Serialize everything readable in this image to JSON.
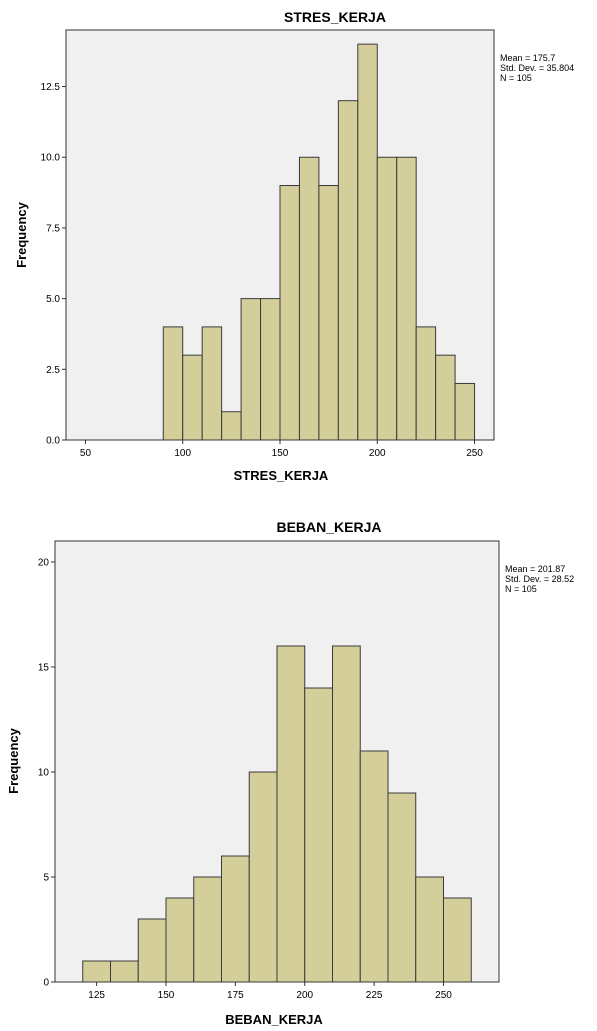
{
  "chart_data": [
    {
      "type": "bar",
      "title": "STRES_KERJA",
      "xlabel": "STRES_KERJA",
      "ylabel": "Frequency",
      "xlim": [
        40,
        260
      ],
      "ylim": [
        0,
        14.5
      ],
      "xticks": [
        50,
        100,
        150,
        200,
        250
      ],
      "xtick_labels": [
        "50",
        "100",
        "150",
        "200",
        "250"
      ],
      "yticks": [
        0,
        2.5,
        5,
        7.5,
        10,
        12.5
      ],
      "ytick_labels": [
        "0.0",
        "2.5",
        "5.0",
        "7.5",
        "10.0",
        "12.5"
      ],
      "bin_width": 10,
      "bins": [
        {
          "start": 90,
          "end": 100,
          "value": 4
        },
        {
          "start": 100,
          "end": 110,
          "value": 3
        },
        {
          "start": 110,
          "end": 120,
          "value": 4
        },
        {
          "start": 120,
          "end": 130,
          "value": 1
        },
        {
          "start": 130,
          "end": 140,
          "value": 5
        },
        {
          "start": 140,
          "end": 150,
          "value": 5
        },
        {
          "start": 150,
          "end": 160,
          "value": 9
        },
        {
          "start": 160,
          "end": 170,
          "value": 10
        },
        {
          "start": 170,
          "end": 180,
          "value": 9
        },
        {
          "start": 180,
          "end": 190,
          "value": 12
        },
        {
          "start": 190,
          "end": 200,
          "value": 14
        },
        {
          "start": 200,
          "end": 210,
          "value": 10
        },
        {
          "start": 210,
          "end": 220,
          "value": 10
        },
        {
          "start": 220,
          "end": 230,
          "value": 4
        },
        {
          "start": 230,
          "end": 240,
          "value": 3
        },
        {
          "start": 240,
          "end": 250,
          "value": 2
        }
      ],
      "stats": [
        "Mean = 175.7",
        "Std. Dev. = 35.804",
        "N = 105"
      ],
      "grid": false,
      "legend": "none"
    },
    {
      "type": "bar",
      "title": "BEBAN_KERJA",
      "xlabel": "BEBAN_KERJA",
      "ylabel": "Frequency",
      "xlim": [
        110,
        270
      ],
      "ylim": [
        0,
        21
      ],
      "xticks": [
        125,
        150,
        175,
        200,
        225,
        250
      ],
      "xtick_labels": [
        "125",
        "150",
        "175",
        "200",
        "225",
        "250"
      ],
      "yticks": [
        0,
        5,
        10,
        15,
        20
      ],
      "ytick_labels": [
        "0",
        "5",
        "10",
        "15",
        "20"
      ],
      "bin_width": 10,
      "bins": [
        {
          "start": 120,
          "end": 130,
          "value": 1
        },
        {
          "start": 130,
          "end": 140,
          "value": 1
        },
        {
          "start": 140,
          "end": 150,
          "value": 3
        },
        {
          "start": 150,
          "end": 160,
          "value": 4
        },
        {
          "start": 160,
          "end": 170,
          "value": 5
        },
        {
          "start": 170,
          "end": 180,
          "value": 6
        },
        {
          "start": 180,
          "end": 190,
          "value": 10
        },
        {
          "start": 190,
          "end": 200,
          "value": 16
        },
        {
          "start": 200,
          "end": 210,
          "value": 14
        },
        {
          "start": 210,
          "end": 220,
          "value": 16
        },
        {
          "start": 220,
          "end": 230,
          "value": 11
        },
        {
          "start": 230,
          "end": 240,
          "value": 9
        },
        {
          "start": 240,
          "end": 250,
          "value": 5
        },
        {
          "start": 250,
          "end": 260,
          "value": 4
        }
      ],
      "stats": [
        "Mean = 201.87",
        "Std. Dev. = 28.52",
        "N = 105"
      ],
      "grid": false,
      "legend": "none"
    }
  ],
  "colors": {
    "bar_fill": "#d4cf9a",
    "bar_stroke": "#3a3a3a",
    "plot_bg": "#f0f0f0",
    "frame": "#333333"
  }
}
